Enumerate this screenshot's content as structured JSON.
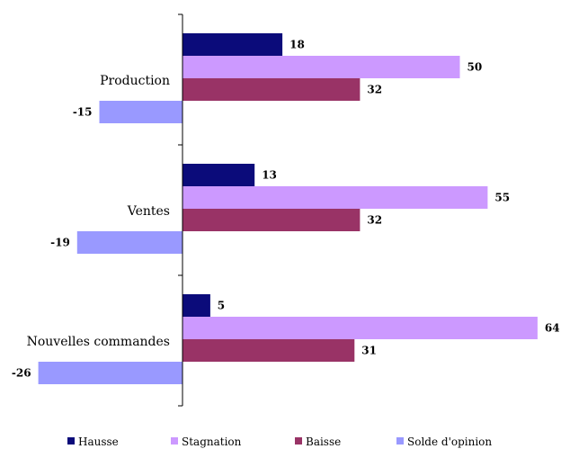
{
  "chart_data": {
    "type": "bar",
    "orientation": "horizontal",
    "categories": [
      "Production",
      "Ventes",
      "Nouvelles commandes"
    ],
    "series": [
      {
        "name": "Hausse",
        "color": "#0b0b7a",
        "values": [
          18,
          13,
          5
        ]
      },
      {
        "name": "Stagnation",
        "color": "#cc99ff",
        "values": [
          50,
          55,
          64
        ]
      },
      {
        "name": "Baisse",
        "color": "#993366",
        "values": [
          32,
          32,
          31
        ]
      },
      {
        "name": "Solde d'opinion",
        "color": "#9999ff",
        "values": [
          -15,
          -19,
          -26
        ]
      }
    ],
    "title": "",
    "xlabel": "",
    "ylabel": "",
    "xlim": [
      -30,
      70
    ],
    "grid": false,
    "legend_position": "bottom"
  }
}
